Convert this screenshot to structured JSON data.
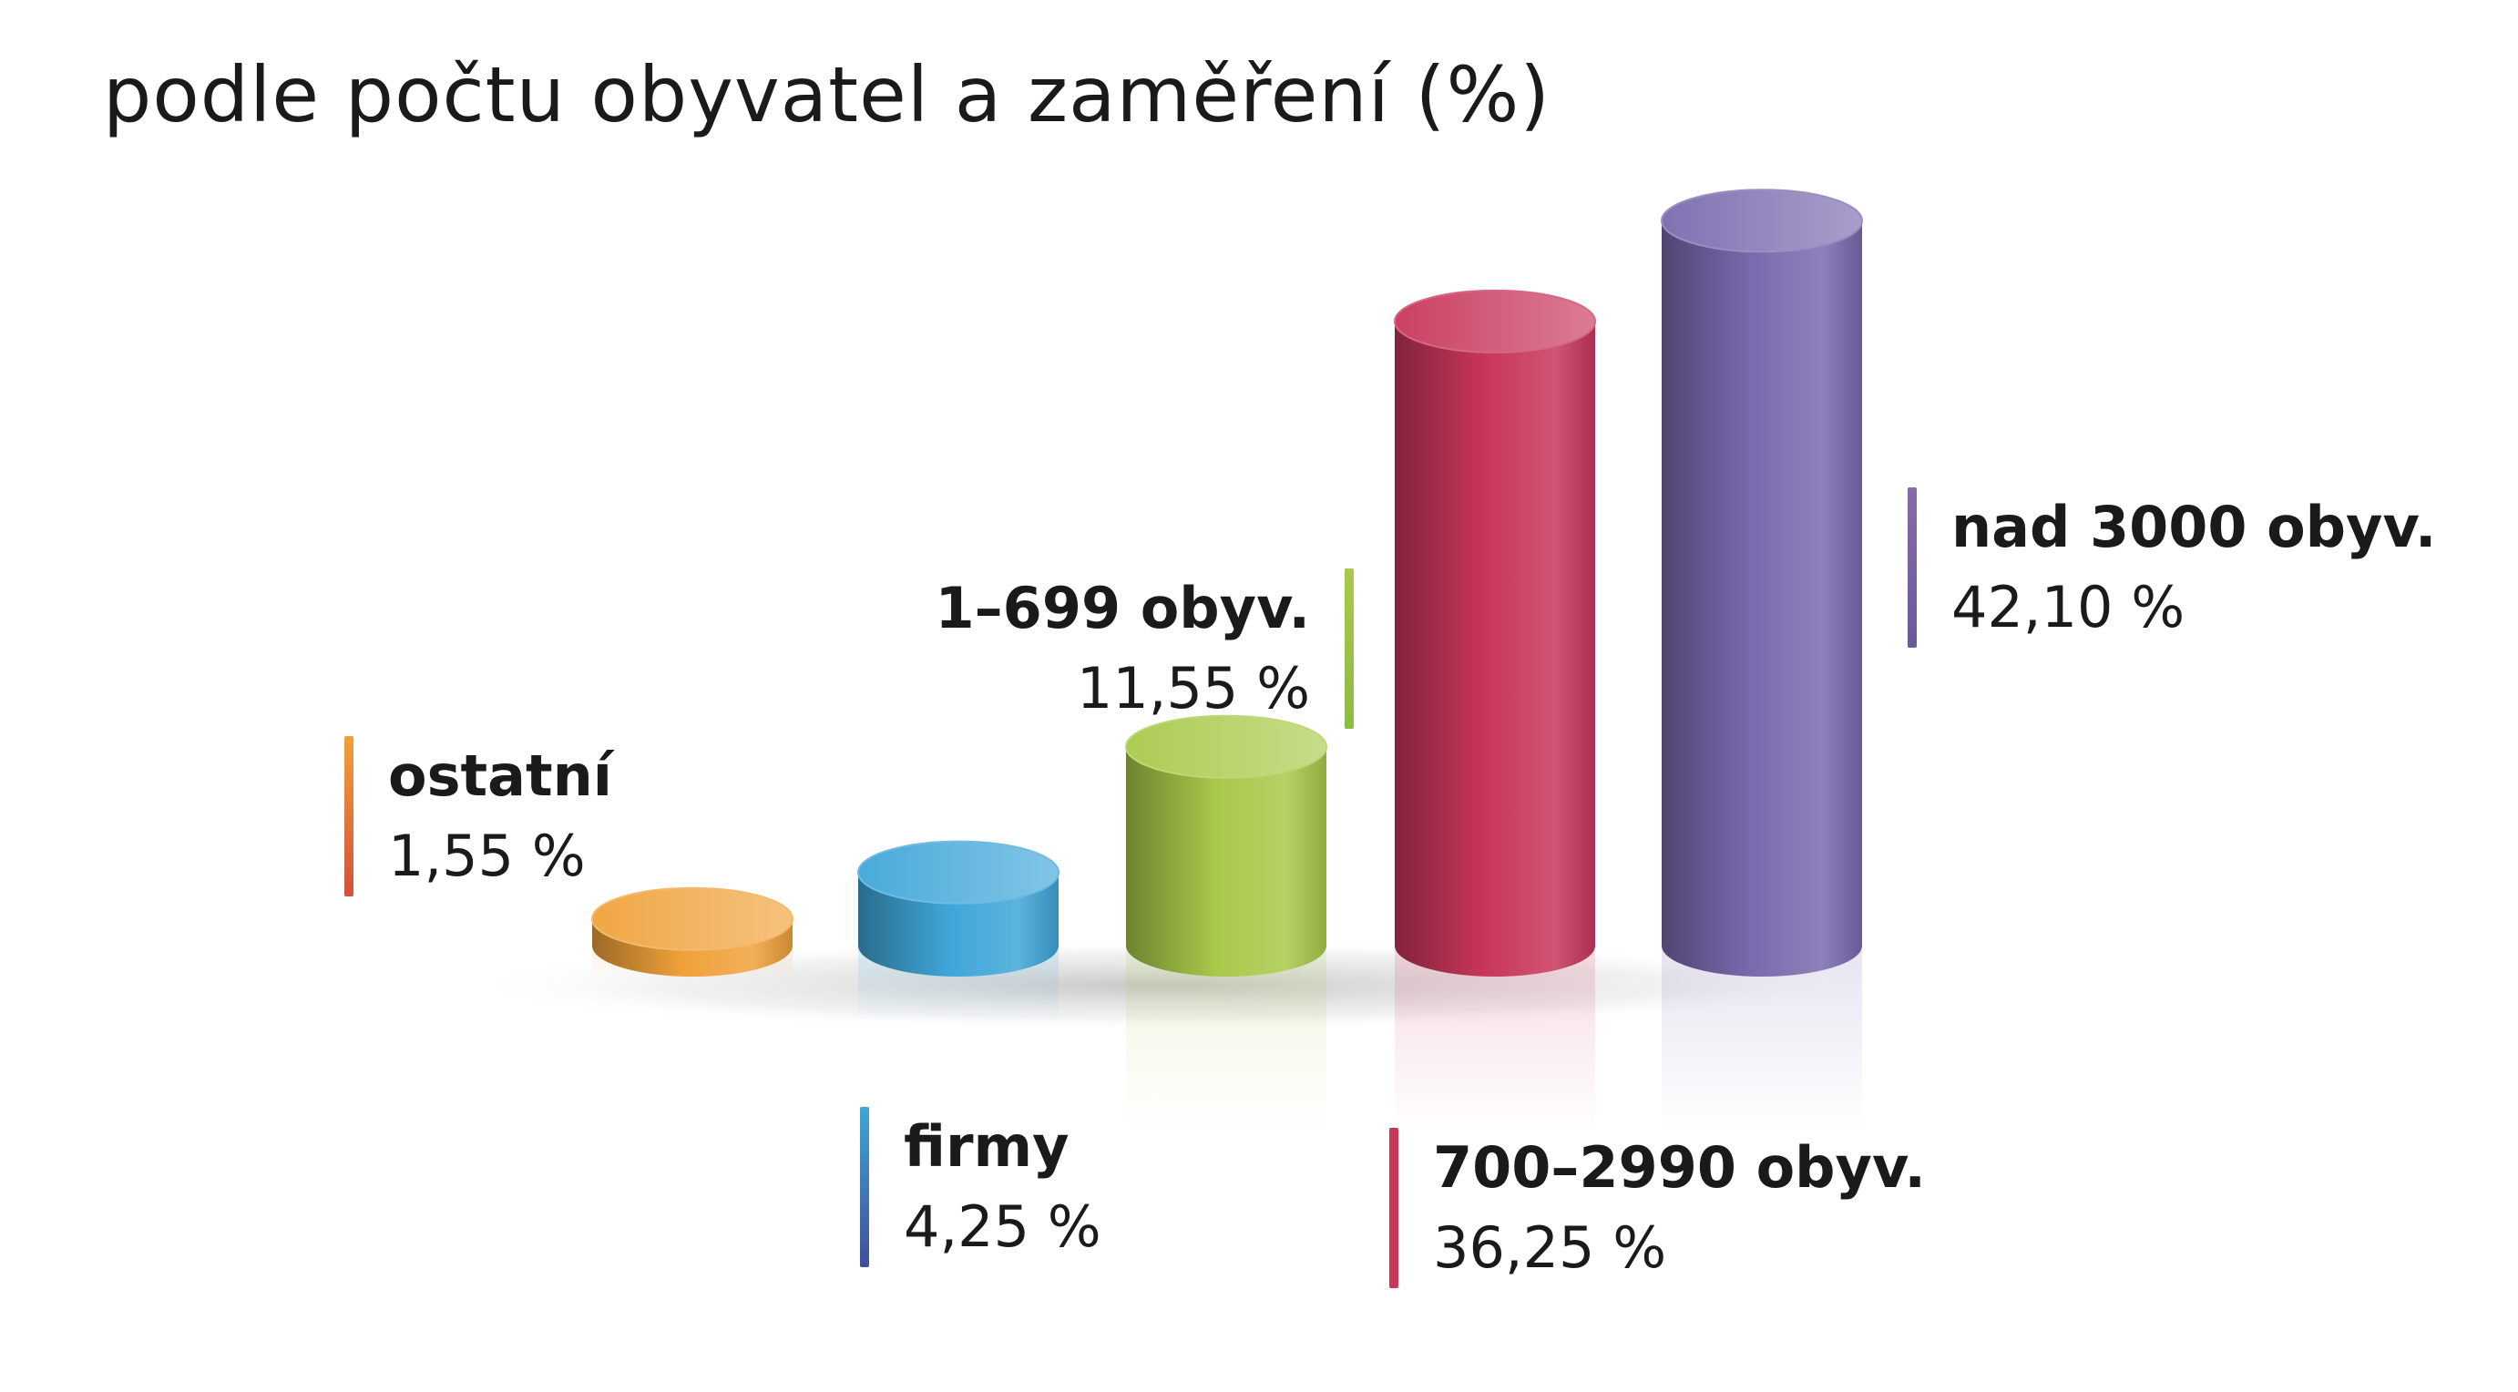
{
  "chart_data": {
    "type": "bar",
    "title": "podle počtu obyvatel a zaměření (%)",
    "categories": [
      "ostatní",
      "firmy",
      "1–699 obyv.",
      "700–2990 obyv.",
      "nad 3000 obyv."
    ],
    "values": [
      1.55,
      4.25,
      11.55,
      36.25,
      42.1
    ],
    "value_labels": [
      "1,55 %",
      "4,25 %",
      "11,55 %",
      "36,25 %",
      "42,10 %"
    ],
    "colors": [
      "#F0A13A",
      "#3FA6D8",
      "#A9C94A",
      "#C8365A",
      "#7A6AAE"
    ],
    "ylim": [
      0,
      45
    ],
    "grid": false,
    "legend": "none"
  }
}
